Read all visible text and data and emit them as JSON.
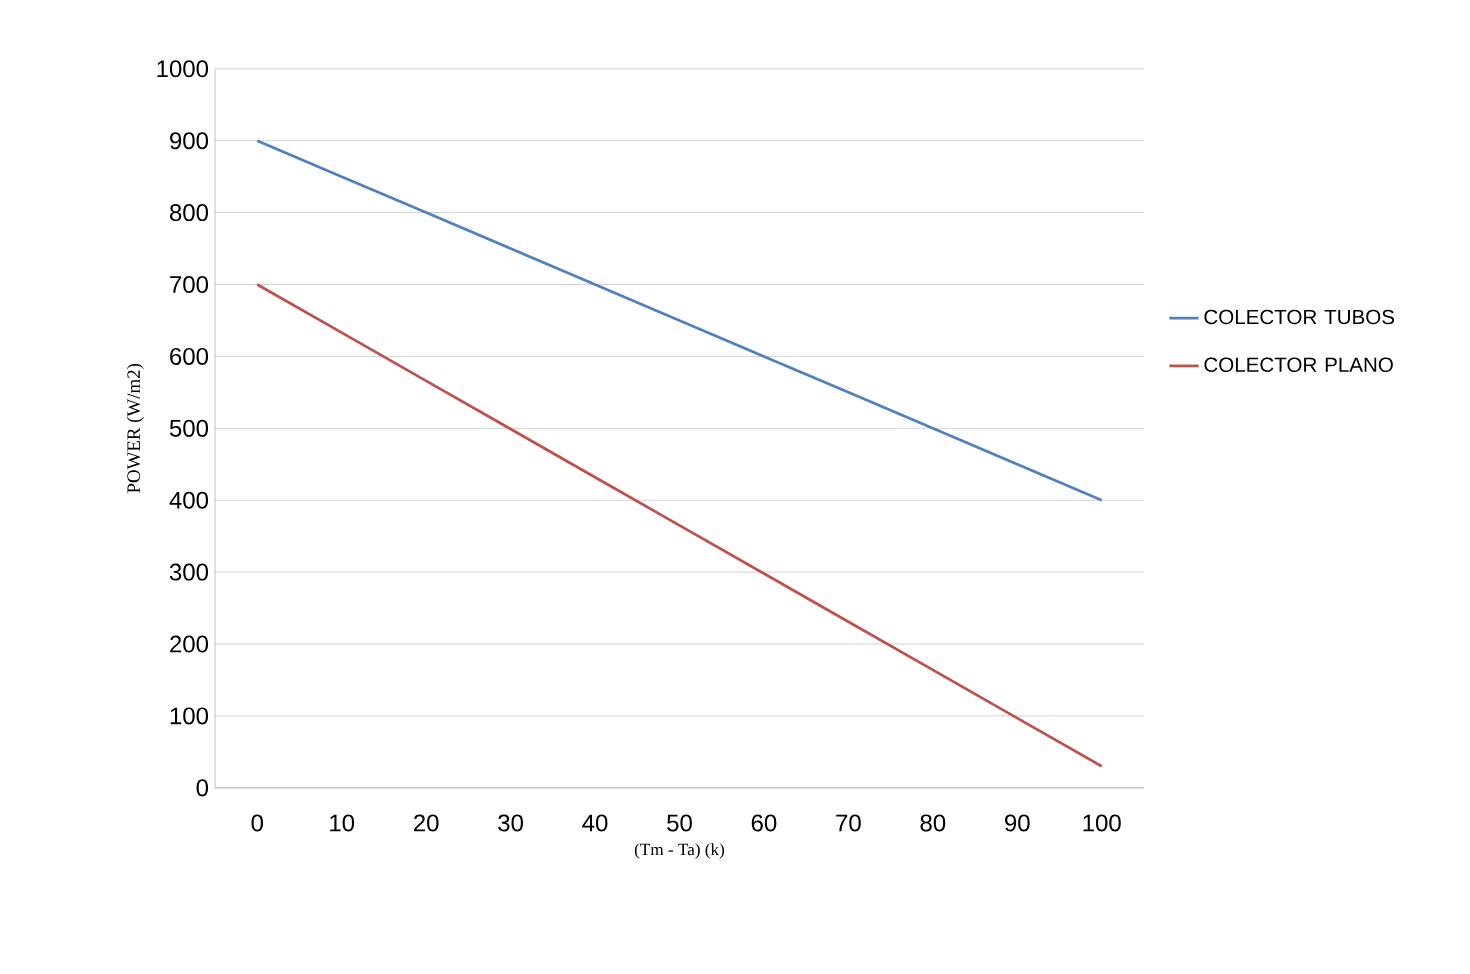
{
  "chart_data": {
    "type": "line",
    "xlabel": "(Tm - Ta) (k)",
    "ylabel": "POWER (W/m2)",
    "categories": [
      "0",
      "10",
      "20",
      "30",
      "40",
      "50",
      "60",
      "70",
      "80",
      "90",
      "100"
    ],
    "series": [
      {
        "name": "COLECTOR TUBOS",
        "color": "#4f81bd",
        "values": [
          900,
          850,
          800,
          750,
          700,
          650,
          600,
          550,
          500,
          450,
          400
        ]
      },
      {
        "name": "COLECTOR PLANO",
        "color": "#c0504d",
        "values": [
          700,
          633,
          566,
          499,
          432,
          365,
          298,
          231,
          164,
          97,
          30
        ]
      }
    ],
    "ylim": [
      0,
      1000
    ],
    "yticks": [
      0,
      100,
      200,
      300,
      400,
      500,
      600,
      700,
      800,
      900,
      1000
    ],
    "grid": "y",
    "legend": "right",
    "marker": "none"
  }
}
